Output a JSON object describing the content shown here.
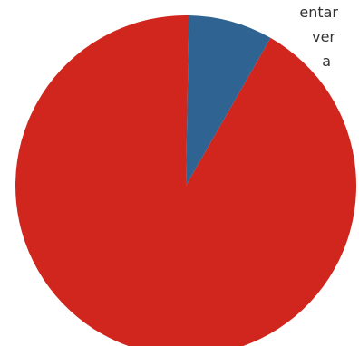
{
  "legend": {
    "lines": [
      "entar",
      "ver",
      "a"
    ]
  },
  "chart_data": {
    "type": "pie",
    "series": [
      {
        "name": "",
        "value": 92,
        "color": "#d0261e"
      },
      {
        "name": "",
        "value": 8,
        "color": "#2f6391"
      }
    ]
  }
}
